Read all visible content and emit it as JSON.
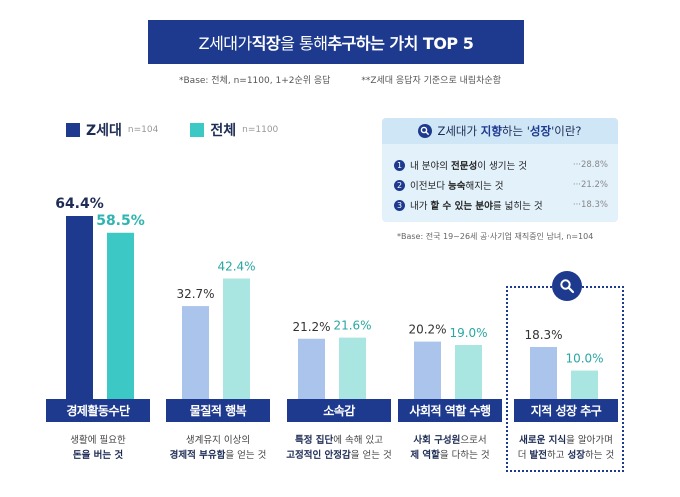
{
  "title": {
    "part1": "Z세대가 ",
    "bold1": "직장",
    "part2": "을 통해 ",
    "bold2": "추구하는 가치 TOP 5"
  },
  "notes": [
    "*Base: 전체, n=1100, 1+2순위 응답",
    "**Z세대 응답자 기준으로 내림차순함"
  ],
  "legend": [
    {
      "label": "Z세대",
      "n": "n=104",
      "color": "#1e3a8f"
    },
    {
      "label": "전체",
      "n": "n=1100",
      "color": "#3cc8c4"
    }
  ],
  "info": {
    "head_pre": "Z세대가 ",
    "head_bold1": "지향",
    "head_mid": "하는 '",
    "head_bold2": "성장",
    "head_post": "'이란?",
    "items": [
      {
        "num": "1",
        "pre": "내 분야의 ",
        "bold": "전문성",
        "post": "이 생기는 것",
        "pct": "···28.8%"
      },
      {
        "num": "2",
        "pre": "이전보다 ",
        "bold": "능숙",
        "post": "해지는 것",
        "pct": "···21.2%"
      },
      {
        "num": "3",
        "pre": "내가 ",
        "bold": "할 수 있는 분야",
        "post": "를 넓히는 것",
        "pct": "···18.3%"
      }
    ],
    "base": "*Base: 전국 19~26세 공·사기업 재직중인 남녀, n=104"
  },
  "descriptions": [
    {
      "l1": "생활에 필요한",
      "l2b": "돈을 버는 것",
      "l2": ""
    },
    {
      "l1": "생계유지 이상의",
      "l2b": "경제적 부유함",
      "l2": "을 얻는 것"
    },
    {
      "l1b": "특정 집단",
      "l1": "에 속해 있고",
      "l2b": "고정적인 안정감",
      "l2": "을 얻는 것"
    },
    {
      "l1b": "사회 구성원",
      "l1": "으로서",
      "l2b": "제 역할",
      "l2": "을 다하는 것"
    },
    {
      "l1b": "새로운 지식",
      "l1": "을 알아가며",
      "l2pre": "더 ",
      "l2b": "발전",
      "l2mid": "하고 ",
      "l2b2": "성장",
      "l2": "하는 것"
    }
  ],
  "chart_data": {
    "type": "bar",
    "categories": [
      "경제활동수단",
      "물질적 행복",
      "소속감",
      "사회적 역할 수행",
      "지적 성장 추구"
    ],
    "series": [
      {
        "name": "Z세대",
        "values": [
          64.4,
          32.7,
          21.2,
          20.2,
          18.3
        ],
        "labels": [
          "64.4%",
          "32.7%",
          "21.2%",
          "20.2%",
          "18.3%"
        ]
      },
      {
        "name": "전체",
        "values": [
          58.5,
          42.4,
          21.6,
          19.0,
          10.0
        ],
        "labels": [
          "58.5%",
          "42.4%",
          "21.6%",
          "19.0%",
          "10.0%"
        ]
      }
    ],
    "colors": {
      "z_top": "#1e3a8f",
      "all_top": "#3cc8c4",
      "z_light": "#aac4ec",
      "all_light": "#a9e5e1"
    },
    "title": "Z세대가 직장을 통해 추구하는 가치 TOP 5",
    "ylim": [
      0,
      70
    ]
  }
}
